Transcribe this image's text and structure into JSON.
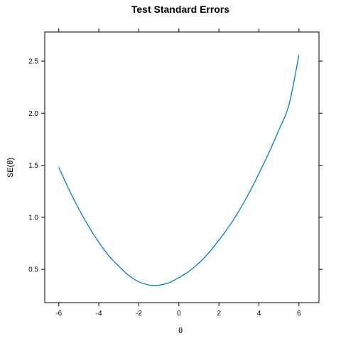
{
  "chart_data": {
    "type": "line",
    "title": "Test Standard Errors",
    "xlabel": "θ",
    "ylabel": "SE(θ)",
    "xlim": [
      -6.7,
      7.0
    ],
    "ylim": [
      0.18,
      2.78
    ],
    "x_ticks": [
      -6,
      -4,
      -2,
      0,
      2,
      4,
      6
    ],
    "y_ticks": [
      0.5,
      1.0,
      1.5,
      2.0,
      2.5
    ],
    "x_tick_labels": [
      "-6",
      "-4",
      "-2",
      "0",
      "2",
      "4",
      "6"
    ],
    "y_tick_labels": [
      "0.5",
      "1.0",
      "1.5",
      "2.0",
      "2.5"
    ],
    "grid": false,
    "series": [
      {
        "color": "#0080c0",
        "x": [
          -6,
          -5.5,
          -5,
          -4.5,
          -4,
          -3.5,
          -3,
          -2.5,
          -2,
          -1.5,
          -1.2,
          -1,
          -0.5,
          0,
          0.5,
          1,
          1.5,
          2,
          2.5,
          3,
          3.5,
          4,
          4.5,
          5,
          5.5,
          6
        ],
        "y": [
          1.48,
          1.27,
          1.08,
          0.91,
          0.76,
          0.63,
          0.53,
          0.44,
          0.38,
          0.35,
          0.345,
          0.347,
          0.37,
          0.42,
          0.48,
          0.56,
          0.66,
          0.78,
          0.91,
          1.06,
          1.23,
          1.42,
          1.62,
          1.84,
          2.08,
          2.56
        ]
      }
    ]
  }
}
